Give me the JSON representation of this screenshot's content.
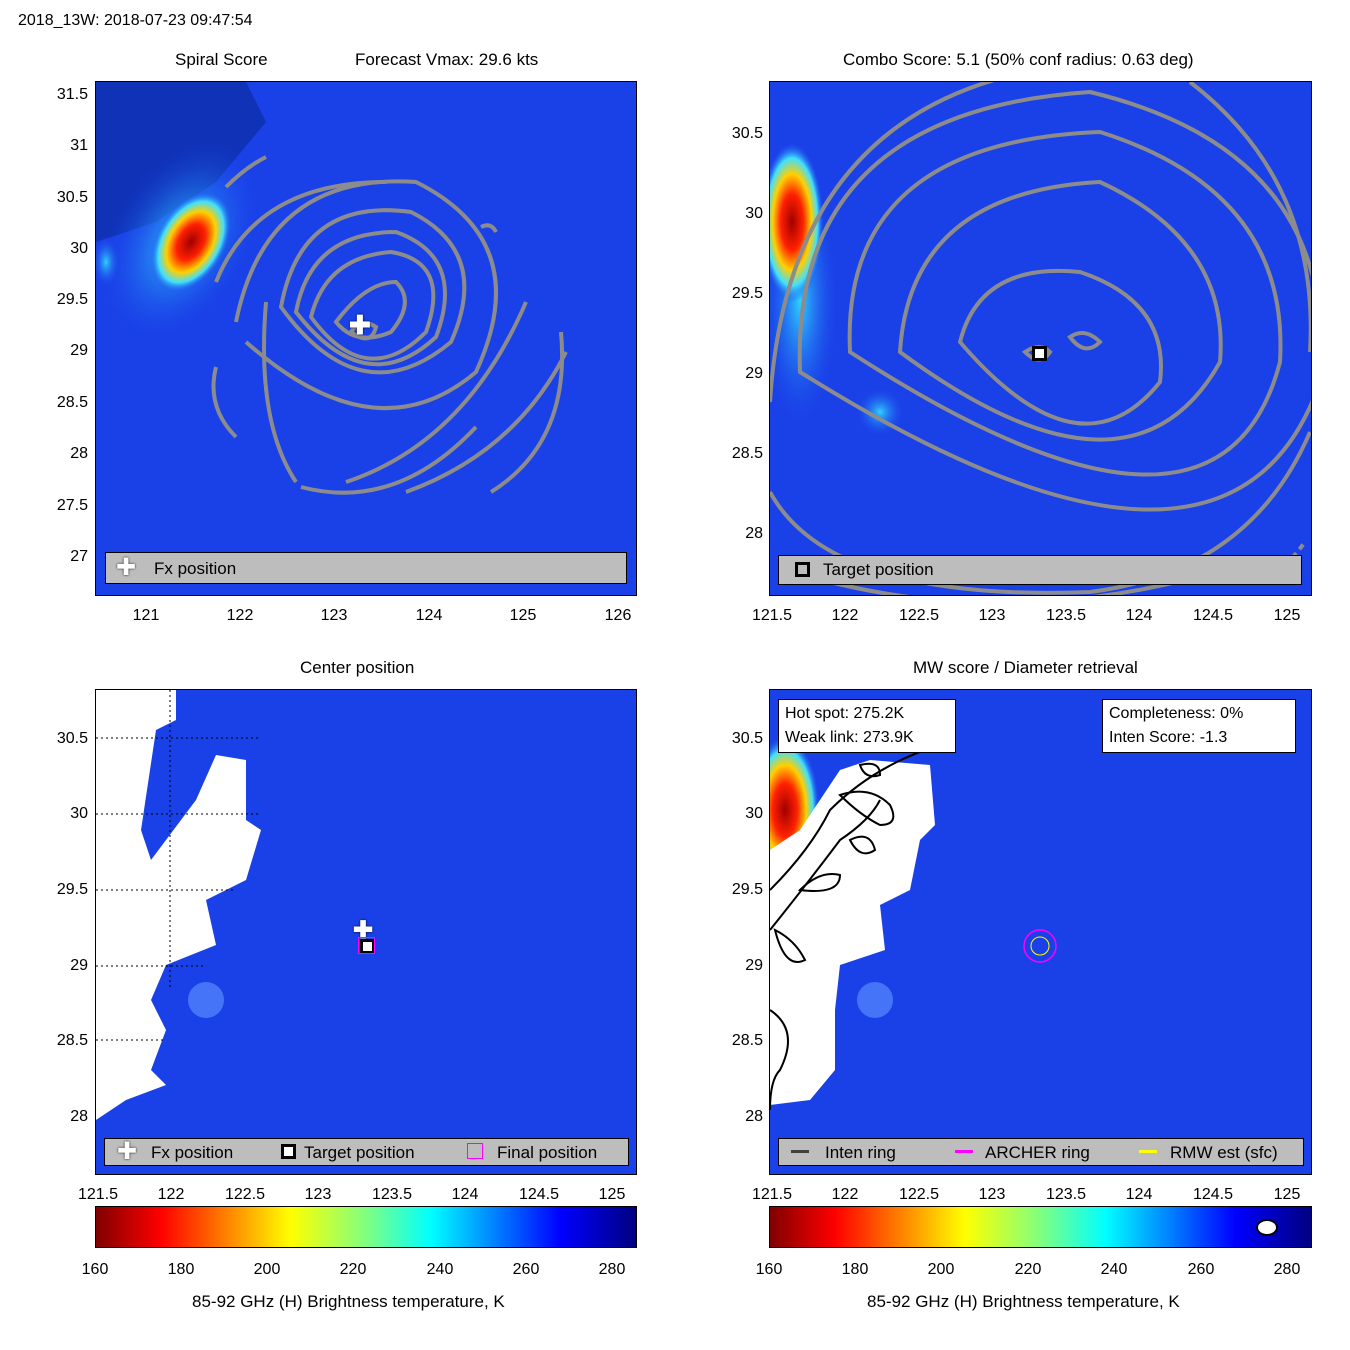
{
  "header": {
    "title": "2018_13W: 2018-07-23 09:47:54"
  },
  "panels": {
    "spiral": {
      "title_left": "Spiral Score",
      "title_right": "Forecast Vmax: 29.6 kts",
      "yticks": [
        "31.5",
        "31",
        "30.5",
        "30",
        "29.5",
        "29",
        "28.5",
        "28",
        "27.5",
        "27"
      ],
      "xticks": [
        "121",
        "122",
        "123",
        "124",
        "125",
        "126"
      ],
      "legend": {
        "fx_label": "Fx position"
      }
    },
    "combo": {
      "title": "Combo Score: 5.1  (50% conf radius: 0.63 deg)",
      "yticks": [
        "30.5",
        "30",
        "29.5",
        "29",
        "28.5",
        "28"
      ],
      "xticks": [
        "121.5",
        "122",
        "122.5",
        "123",
        "123.5",
        "124",
        "124.5",
        "125"
      ],
      "legend": {
        "target_label": "Target position"
      }
    },
    "center": {
      "title": "Center position",
      "yticks": [
        "30.5",
        "30",
        "29.5",
        "29",
        "28.5",
        "28"
      ],
      "xticks": [
        "121.5",
        "122",
        "122.5",
        "123",
        "123.5",
        "124",
        "124.5",
        "125"
      ],
      "legend": {
        "fx_label": "Fx position",
        "target_label": "Target position",
        "final_label": "Final position"
      }
    },
    "mw": {
      "title": "MW score / Diameter retrieval",
      "yticks": [
        "30.5",
        "30",
        "29.5",
        "29",
        "28.5",
        "28"
      ],
      "xticks": [
        "121.5",
        "122",
        "122.5",
        "123",
        "123.5",
        "124",
        "124.5",
        "125"
      ],
      "info_left": {
        "hot_spot": "Hot spot: 275.2K",
        "weak_link": "Weak link: 273.9K"
      },
      "info_right": {
        "completeness": "Completeness: 0%",
        "inten_score": "Inten Score: -1.3"
      },
      "legend": {
        "inten_ring": "Inten ring",
        "archer_ring": "ARCHER ring",
        "rmw_est": "RMW est (sfc)"
      }
    }
  },
  "colorbars": {
    "ticks": [
      "160",
      "180",
      "200",
      "220",
      "240",
      "260",
      "280"
    ],
    "label": "85-92 GHz (H) Brightness temperature, K"
  },
  "colors": {
    "background_field": "#1a40e8",
    "contour": "#8c8c8c",
    "legend_bg": "#bdbdbd",
    "archer_ring": "#ff00ff",
    "rmw_est": "#ffff00",
    "inten_ring": "#404040"
  },
  "chart_data": [
    {
      "type": "heatmap",
      "title": "Spiral Score",
      "subtitle": "Forecast Vmax: 29.6 kts",
      "xlim": [
        120.5,
        126.2
      ],
      "ylim": [
        26.6,
        31.7
      ],
      "markers": [
        {
          "name": "Fx position",
          "x": 123.3,
          "y": 29.22
        }
      ]
    },
    {
      "type": "heatmap",
      "title": "Combo Score: 5.1  (50% conf radius: 0.63 deg)",
      "xlim": [
        121.5,
        125.15
      ],
      "ylim": [
        27.6,
        30.8
      ],
      "markers": [
        {
          "name": "Target position",
          "x": 123.31,
          "y": 29.13
        }
      ]
    },
    {
      "type": "heatmap",
      "title": "Center position",
      "xlim": [
        121.5,
        125.15
      ],
      "ylim": [
        27.6,
        30.8
      ],
      "markers": [
        {
          "name": "Fx position",
          "x": 123.3,
          "y": 29.22
        },
        {
          "name": "Target position",
          "x": 123.31,
          "y": 29.13
        },
        {
          "name": "Final position",
          "x": 123.31,
          "y": 29.13
        }
      ]
    },
    {
      "type": "heatmap",
      "title": "MW score / Diameter retrieval",
      "xlim": [
        121.5,
        125.15
      ],
      "ylim": [
        27.6,
        30.8
      ],
      "markers": [
        {
          "name": "ARCHER ring",
          "x": 123.31,
          "y": 29.13
        }
      ]
    }
  ]
}
